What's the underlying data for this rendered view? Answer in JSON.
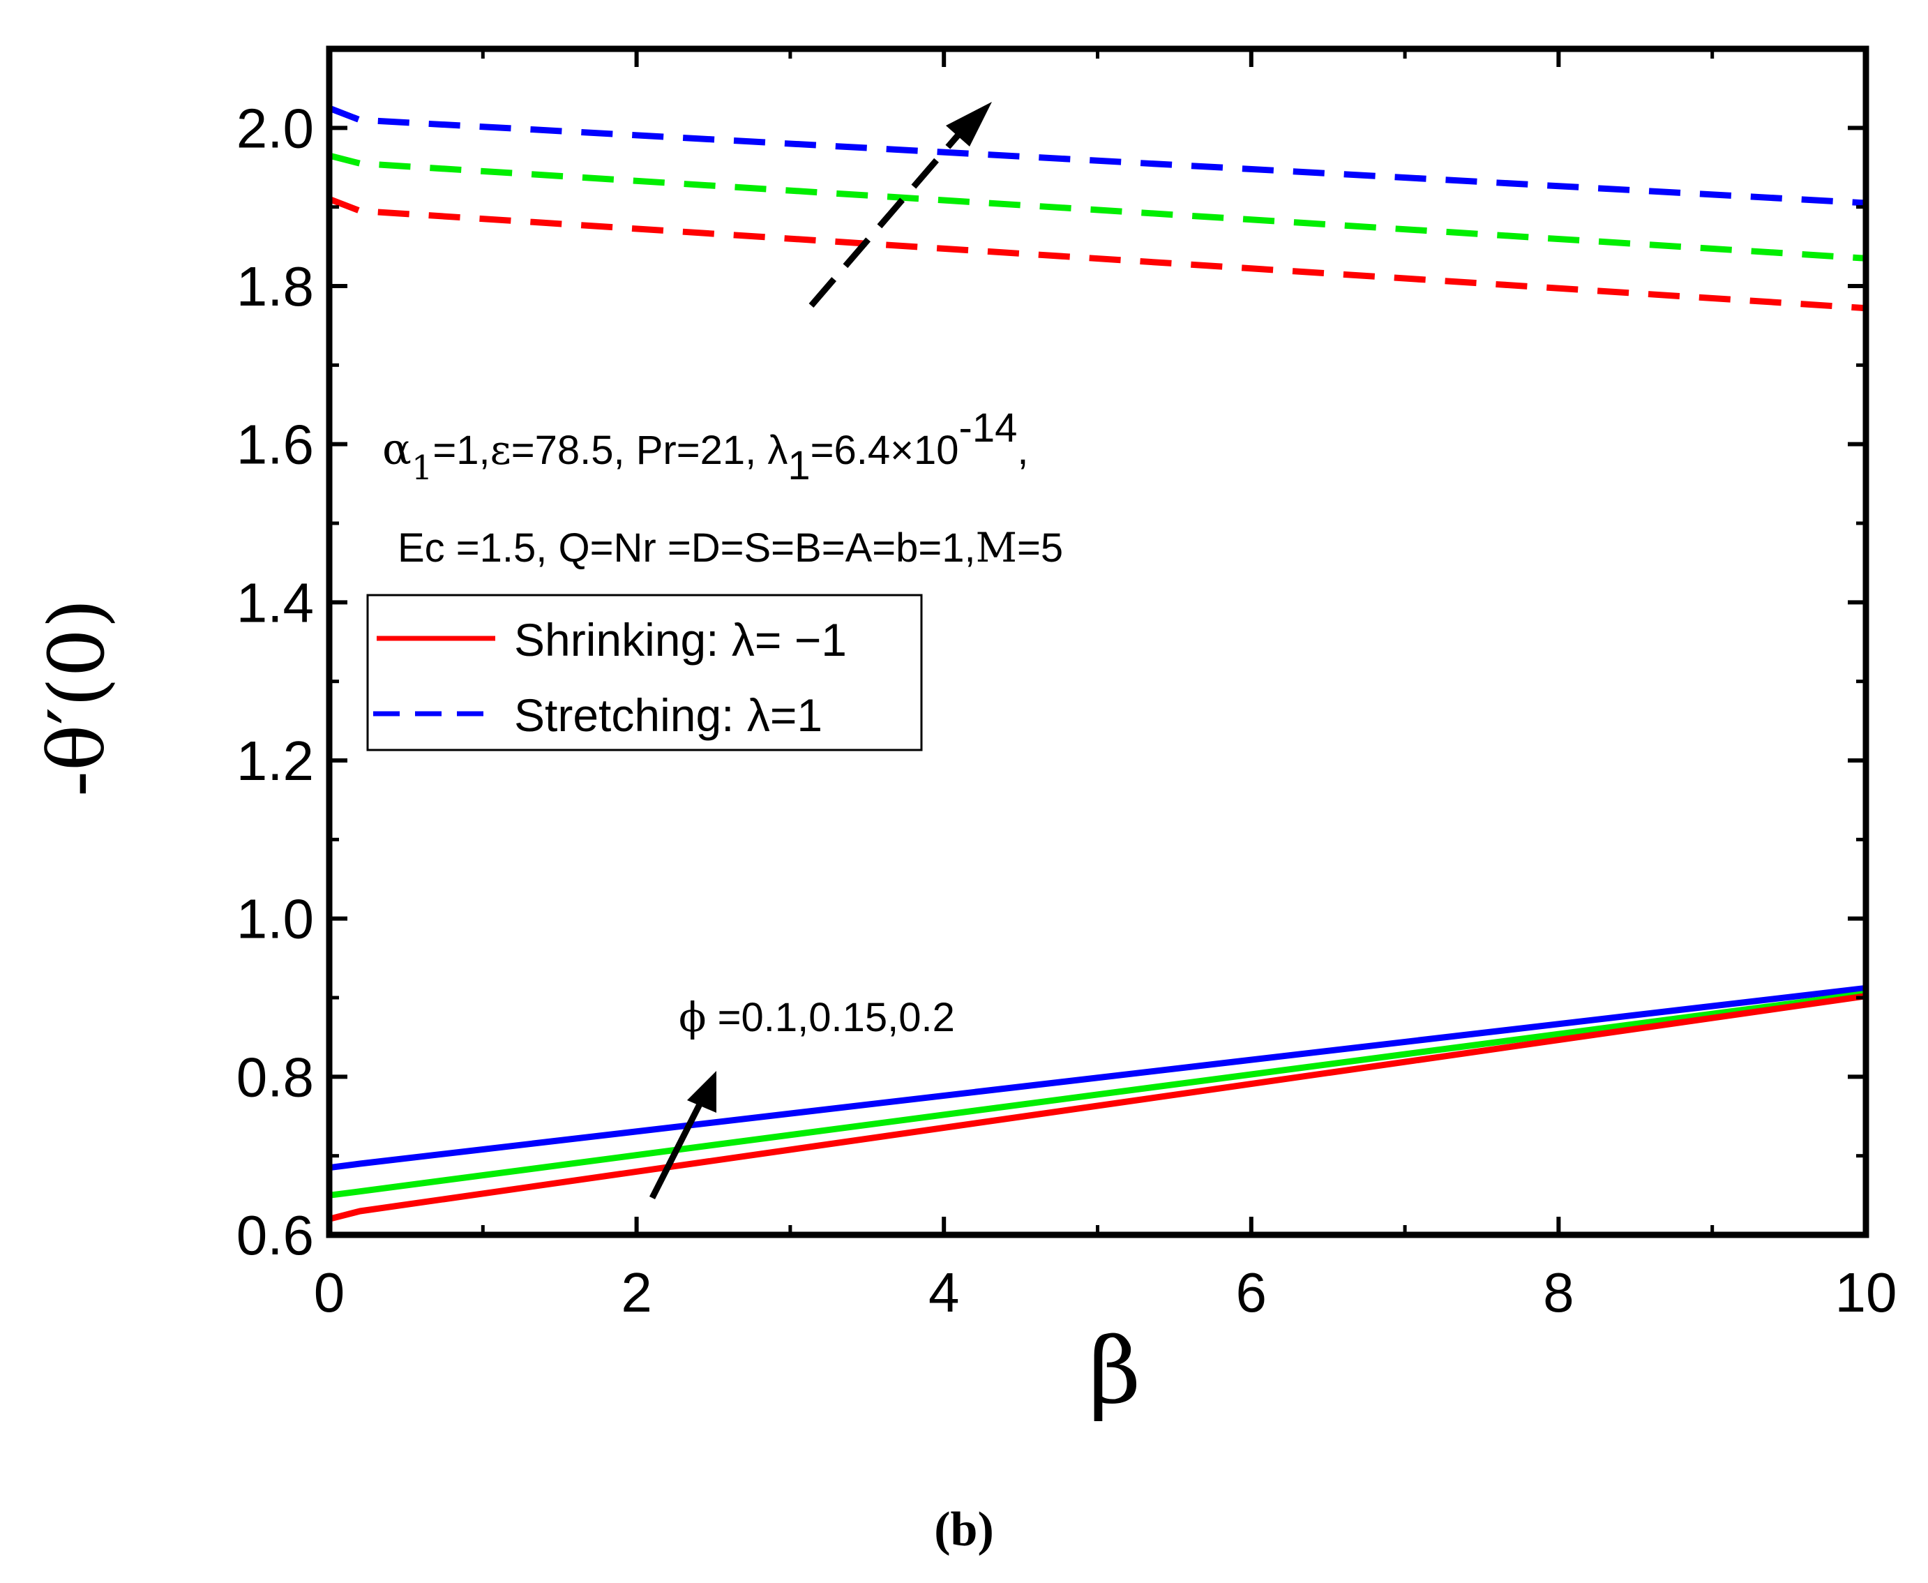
{
  "chart_data": {
    "type": "line",
    "xlabel": "β",
    "ylabel": "-θ′(0)",
    "xlim": [
      0,
      10
    ],
    "ylim": [
      0.6,
      2.1
    ],
    "xticks": [
      "0",
      "2",
      "4",
      "6",
      "8",
      "10"
    ],
    "yticks": [
      "0.6",
      "0.8",
      "1.0",
      "1.2",
      "1.4",
      "1.6",
      "1.8",
      "2.0"
    ],
    "xtick_values": [
      0,
      2,
      4,
      6,
      8,
      10
    ],
    "ytick_values": [
      0.6,
      0.8,
      1.0,
      1.2,
      1.4,
      1.6,
      1.8,
      2.0
    ],
    "x": [
      0,
      0.2,
      10
    ],
    "series": [
      {
        "name": "Stretching φ=0.2",
        "style": "dashed",
        "color": "#0000ff",
        "values": [
          2.025,
          2.01,
          1.905
        ]
      },
      {
        "name": "Stretching φ=0.15",
        "style": "dashed",
        "color": "#00ee00",
        "values": [
          1.965,
          1.955,
          1.835
        ]
      },
      {
        "name": "Stretching φ=0.1",
        "style": "dashed",
        "color": "#ff0000",
        "values": [
          1.91,
          1.895,
          1.772
        ]
      },
      {
        "name": "Shrinking φ=0.2",
        "style": "solid",
        "color": "#0000ff",
        "values": [
          0.685,
          0.69,
          0.912
        ]
      },
      {
        "name": "Shrinking φ=0.15",
        "style": "solid",
        "color": "#00ee00",
        "values": [
          0.65,
          0.655,
          0.905
        ]
      },
      {
        "name": "Shrinking φ=0.1",
        "style": "solid",
        "color": "#ff0000",
        "values": [
          0.62,
          0.63,
          0.902
        ]
      }
    ],
    "legend": {
      "position": "left-middle",
      "entries": [
        {
          "label": "Shrinking: λ= −1",
          "style": "solid",
          "color": "#ff0000"
        },
        {
          "label": "Stretching: λ=1",
          "style": "dashed",
          "color": "#0000ff"
        }
      ]
    },
    "annotations": {
      "params_line1": {
        "alpha": "α",
        "sub1": "1",
        "part1": "=1,",
        "eps": "ε",
        "part2": "=78.5, Pr=21, ",
        "lambda": "λ",
        "sub2": "1",
        "part3": "=6.4×10",
        "sup": "-14",
        "part4": ","
      },
      "params_line2": {
        "part1": "Ec =1.5, Q=Nr =D=S=B=A=b=1,",
        "m": "M",
        "part2": "=5"
      },
      "phi_label": {
        "phi": "ϕ",
        "text": " =0.1,0.15,0.2"
      }
    },
    "caption": "(b)"
  }
}
